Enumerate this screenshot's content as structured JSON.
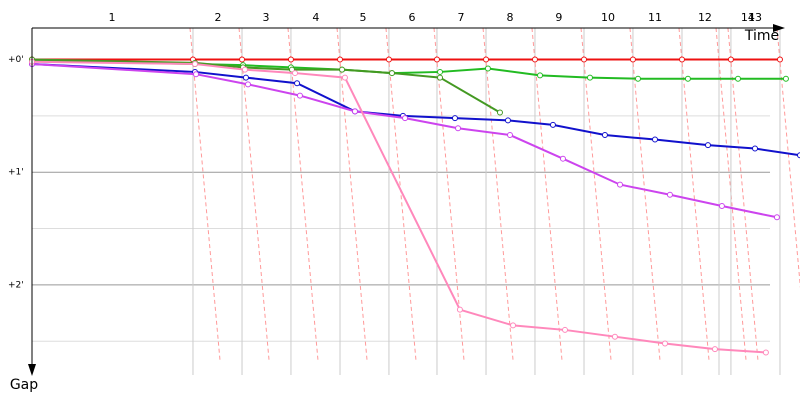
{
  "chart_data": {
    "type": "line",
    "x_label": "Time",
    "y_label": "Gap",
    "xlim": [
      0,
      6.827
    ],
    "ylim": [
      -0.28,
      2.8
    ],
    "y_inverted": true,
    "xticks": [
      1.431,
      1.867,
      2.302,
      2.738,
      3.173,
      3.6,
      4.036,
      4.471,
      4.907,
      5.342,
      5.778,
      6.107,
      6.213,
      6.649
    ],
    "yticks": [
      {
        "value": 0,
        "label": "+0'"
      },
      {
        "value": 1,
        "label": "+1'"
      },
      {
        "value": 2,
        "label": "+2'"
      }
    ],
    "minor_yticks": [
      0.5,
      1.5,
      2.5
    ],
    "lap_labels": [
      {
        "value": 0.711,
        "label": "1"
      },
      {
        "value": 1.653,
        "label": "2"
      },
      {
        "value": 2.08,
        "label": "3"
      },
      {
        "value": 2.524,
        "label": "4"
      },
      {
        "value": 2.942,
        "label": "5"
      },
      {
        "value": 3.378,
        "label": "6"
      },
      {
        "value": 3.813,
        "label": "7"
      },
      {
        "value": 4.249,
        "label": "8"
      },
      {
        "value": 4.684,
        "label": "9"
      },
      {
        "value": 5.12,
        "label": "10"
      },
      {
        "value": 5.538,
        "label": "11"
      },
      {
        "value": 5.982,
        "label": "12"
      },
      {
        "value": 6.364,
        "label": "14"
      },
      {
        "value": 6.427,
        "label": "13"
      }
    ],
    "series": [
      {
        "color": "#ee1111",
        "x": [
          0,
          1.431,
          1.867,
          2.302,
          2.738,
          3.173,
          3.6,
          4.036,
          4.471,
          4.907,
          5.342,
          5.778,
          6.213,
          6.649
        ],
        "values": [
          0,
          0,
          0,
          0,
          0,
          0,
          0,
          0,
          0,
          0,
          0,
          0,
          0,
          0
        ]
      },
      {
        "color": "#22bb22",
        "x": [
          0,
          1.449,
          1.876,
          2.302,
          2.756,
          3.2,
          3.627,
          4.053,
          4.516,
          4.96,
          5.387,
          5.831,
          6.276,
          6.702
        ],
        "values": [
          0.01,
          0.04,
          0.05,
          0.07,
          0.09,
          0.12,
          0.11,
          0.08,
          0.14,
          0.16,
          0.17,
          0.17,
          0.17,
          0.17
        ]
      },
      {
        "color": "#449922",
        "x": [
          0,
          1.449,
          1.876,
          2.311,
          2.756,
          3.2,
          3.627,
          4.16
        ],
        "values": [
          0,
          0.03,
          0.07,
          0.09,
          0.09,
          0.12,
          0.16,
          0.47
        ]
      },
      {
        "color": "#1111cc",
        "x": [
          0,
          1.449,
          1.902,
          2.356,
          2.871,
          3.298,
          3.76,
          4.231,
          4.631,
          5.093,
          5.538,
          6.009,
          6.427,
          6.827
        ],
        "values": [
          0.04,
          0.11,
          0.16,
          0.21,
          0.46,
          0.5,
          0.52,
          0.54,
          0.58,
          0.67,
          0.71,
          0.76,
          0.79,
          0.85
        ]
      },
      {
        "color": "#cc44ee",
        "x": [
          0,
          1.458,
          1.92,
          2.382,
          2.871,
          3.316,
          3.787,
          4.249,
          4.72,
          5.227,
          5.671,
          6.133,
          6.622
        ],
        "values": [
          0.04,
          0.13,
          0.22,
          0.32,
          0.46,
          0.52,
          0.61,
          0.67,
          0.88,
          1.11,
          1.2,
          1.3,
          1.4
        ]
      },
      {
        "color": "#ff88bb",
        "x": [
          0,
          1.449,
          1.893,
          2.338,
          2.782,
          3.804,
          4.276,
          4.738,
          5.182,
          5.627,
          6.071,
          6.524
        ],
        "values": [
          0.02,
          0.04,
          0.09,
          0.12,
          0.16,
          2.22,
          2.36,
          2.4,
          2.46,
          2.52,
          2.57,
          2.6
        ]
      }
    ]
  }
}
